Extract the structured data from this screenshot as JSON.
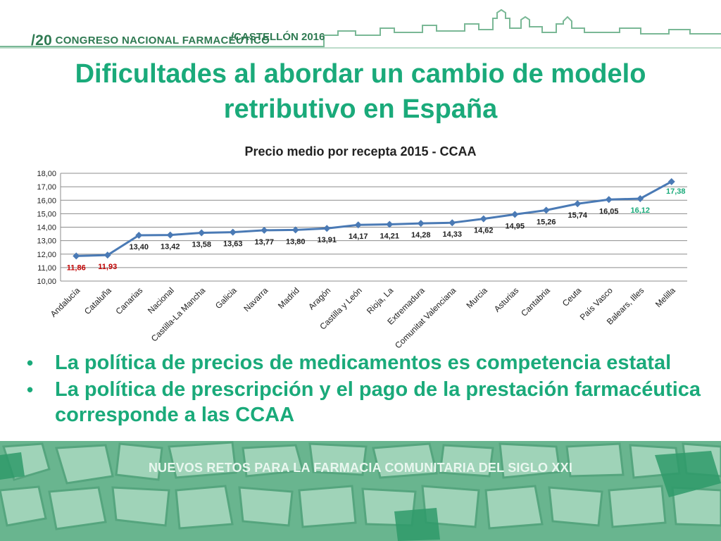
{
  "header": {
    "congress_num": "/20",
    "congress_text": "CONGRESO NACIONAL FARMACÉUTICO",
    "city": "/CASTELLÓN 2016"
  },
  "title_line1": "Dificultades al abordar un cambio de modelo",
  "title_line2": "retributivo en España",
  "bullets": [
    "La política de precios de medicamentos es competencia estatal",
    "La política de prescripción y el pago de la prestación farmacéutica corresponde a las CCAA"
  ],
  "footer": {
    "text": "NUEVOS RETOS PARA LA FARMACIA COMUNITARIA DEL SIGLO XXI"
  },
  "colors": {
    "line": "#4a7ab5",
    "label_default": "#222222",
    "label_low": "#c00000",
    "label_high": "#1aaa7a",
    "grid": "#8c8c8c"
  },
  "chart_data": {
    "type": "line",
    "title": "Precio medio por recepta  2015 - CCAA",
    "categories": [
      "Andalucía",
      "Cataluña",
      "Canarias",
      "Nacional",
      "Castilla-La Mancha",
      "Galicia",
      "Navarra",
      "Madrid",
      "Aragón",
      "Castilla y León",
      "Rioja, La",
      "Extremadura",
      "Comunitat Valenciana",
      "Murcia",
      "Asturias",
      "Cantabria",
      "Ceuta",
      "País Vasco",
      "Balears, Illes",
      "Melilla"
    ],
    "values": [
      11.86,
      11.93,
      13.4,
      13.42,
      13.58,
      13.63,
      13.77,
      13.8,
      13.91,
      14.17,
      14.21,
      14.28,
      14.33,
      14.62,
      14.95,
      15.26,
      15.74,
      16.05,
      16.12,
      17.38
    ],
    "value_labels": [
      "11,86",
      "11,93",
      "13,40",
      "13,42",
      "13,58",
      "13,63",
      "13,77",
      "13,80",
      "13,91",
      "14,17",
      "14,21",
      "14,28",
      "14,33",
      "14,62",
      "14,95",
      "15,26",
      "15,74",
      "16,05",
      "16,12",
      "17,38"
    ],
    "label_color_groups": [
      "low",
      "low",
      "default",
      "default",
      "default",
      "default",
      "default",
      "default",
      "default",
      "default",
      "default",
      "default",
      "default",
      "default",
      "default",
      "default",
      "default",
      "default",
      "high",
      "high"
    ],
    "yticks": [
      "10,00",
      "11,00",
      "12,00",
      "13,00",
      "14,00",
      "15,00",
      "16,00",
      "17,00",
      "18,00"
    ],
    "ylim": [
      10,
      18
    ],
    "grid": true,
    "xlabel": "",
    "ylabel": ""
  }
}
